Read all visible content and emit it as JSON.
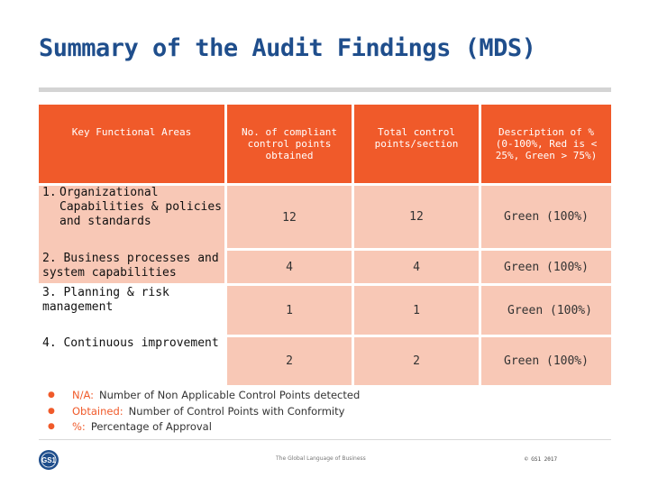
{
  "title": "Summary of the Audit Findings (MDS)",
  "table": {
    "headers": [
      "Key Functional Areas",
      "No. of compliant control points obtained",
      "Total control points/section",
      "Description of % (0-100%, Red is < 25%, Green > 75%)"
    ],
    "rows": [
      {
        "area_num": "1.",
        "area": "Organizational Capabilities & policies and standards",
        "compliant": "12",
        "total": "12",
        "description": "Green (100%)"
      },
      {
        "area_num": "2.",
        "area": "Business processes and system capabilities",
        "compliant": "4",
        "total": "4",
        "description": "Green (100%)"
      },
      {
        "area_num": "3.",
        "area": "Planning & risk management",
        "compliant": "1",
        "total": "1",
        "description": "Green (100%)"
      },
      {
        "area_num": "4.",
        "area": "Continuous improvement",
        "compliant": "2",
        "total": "2",
        "description": "Green (100%)"
      }
    ]
  },
  "legend": [
    {
      "key": "N/A:",
      "text": "Number of Non Applicable Control Points detected"
    },
    {
      "key": "Obtained:",
      "text": "Number of Control Points with Conformity"
    },
    {
      "key": "%:",
      "text": "Percentage of Approval"
    }
  ],
  "footer": {
    "logo_text": "GS1",
    "tagline": "The Global Language of Business",
    "copyright": "© GS1 2017"
  },
  "colors": {
    "title": "#1f4e8c",
    "header": "#f05a2a",
    "body": "#f8c8b6",
    "bullet": "#f05a2a"
  }
}
